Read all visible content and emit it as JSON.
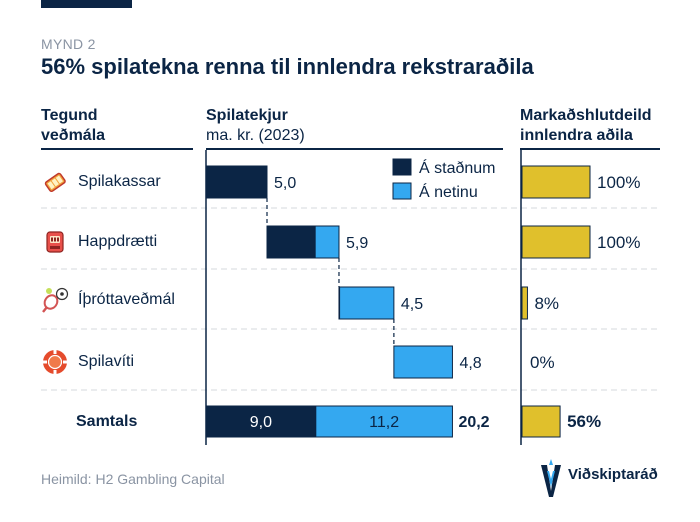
{
  "header": {
    "figure_label": "MYND 2",
    "title": "56% spilatekna renna til innlendra rekstraraðila"
  },
  "columns": {
    "type_line1": "Tegund",
    "type_line2": "veðmála",
    "revenue_line1": "Spilatekjur",
    "revenue_line2": "ma. kr. (2023)",
    "share_line1": "Markaðshlutdeild",
    "share_line2": "innlendra aðila"
  },
  "colors": {
    "domestic": "#0b2545",
    "online": "#34a8f0",
    "share": "#e0c02c",
    "grid": "#d4d8de"
  },
  "rows": [
    {
      "label": "Spilakassar",
      "icon": "slot-machine-icon"
    },
    {
      "label": "Happdrætti",
      "icon": "lottery-machine-icon"
    },
    {
      "label": "Íþróttaveðmál",
      "icon": "sports-betting-icon"
    },
    {
      "label": "Spilavíti",
      "icon": "casino-chip-icon"
    }
  ],
  "total_label": "Samtals",
  "chart_data": {
    "type": "bar",
    "subtype": "waterfall",
    "title": "56% spilatekna renna til innlendra rekstraraðila",
    "xlabel": "Spilatekjur ma. kr. (2023)",
    "categories": [
      "Spilakassar",
      "Happdrætti",
      "Íþróttaveðmál",
      "Spilavíti"
    ],
    "series": [
      {
        "name": "Á staðnum",
        "values": [
          5.0,
          3.95,
          0.05,
          0.0
        ]
      },
      {
        "name": "Á netinu",
        "values": [
          0.0,
          1.95,
          4.45,
          4.8
        ]
      }
    ],
    "row_totals": [
      "5,0",
      "5,9",
      "4,5",
      "4,8"
    ],
    "total": {
      "label": "Samtals",
      "domestic": "9,0",
      "online": "11,2",
      "sum": "20,2",
      "domestic_value": 9.0,
      "online_value": 11.2
    },
    "legend": [
      "Á staðnum",
      "Á netinu"
    ],
    "legend_position": "top-right",
    "share_title": "Markaðshlutdeild innlendra aðila",
    "share_values": [
      100,
      100,
      8,
      0
    ],
    "share_labels": [
      "100%",
      "100%",
      "8%",
      "0%"
    ],
    "share_total": 56,
    "share_total_label": "56%",
    "xlim": [
      0,
      20.2
    ]
  },
  "footer": {
    "source": "Heimild: H2 Gambling Capital",
    "brand": "Viðskiptaráð"
  }
}
